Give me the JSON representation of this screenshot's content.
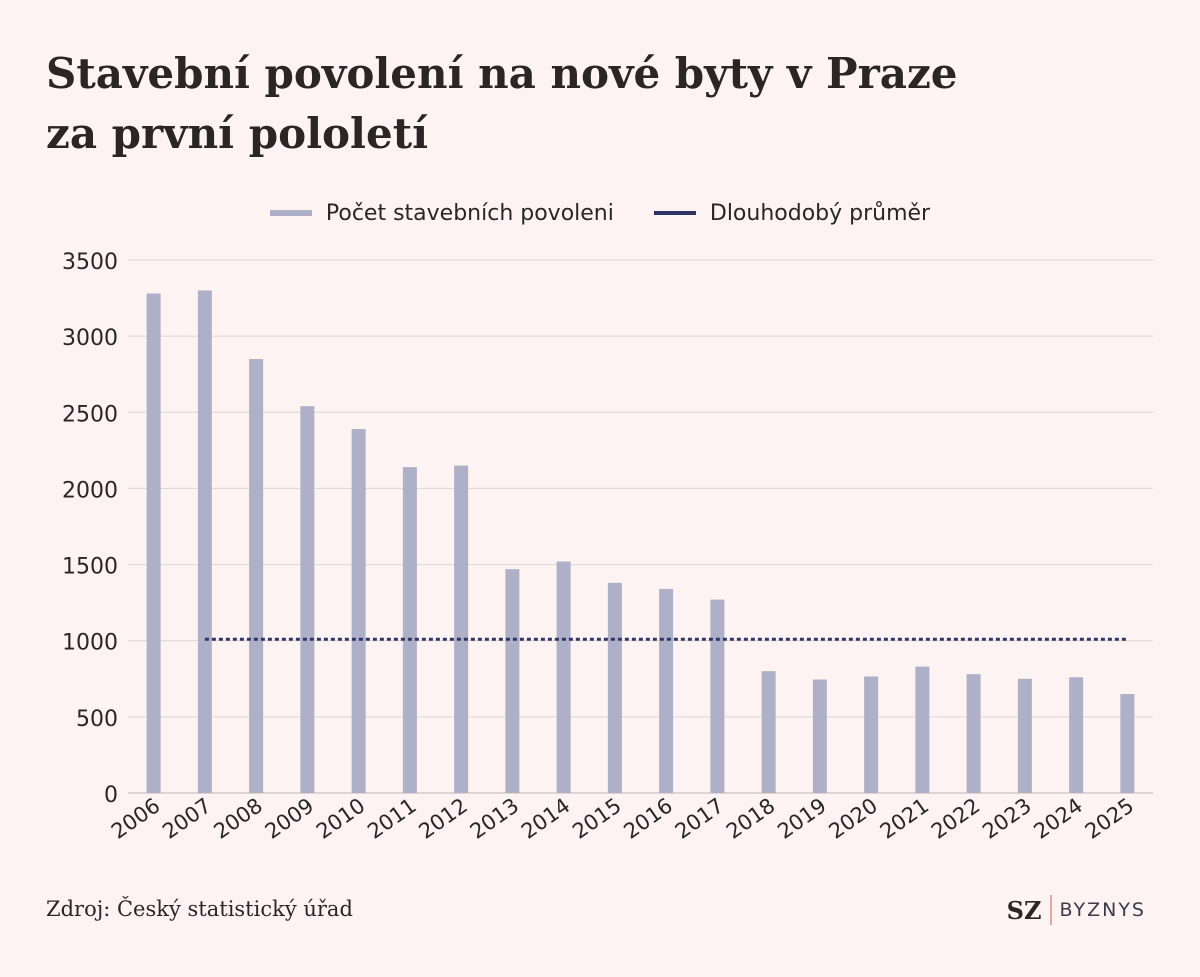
{
  "title_lines": [
    "Stavební povolení na nové byty v Praze",
    "za první pololetí"
  ],
  "legend": {
    "bars_label": "Počet stavebních povoleni",
    "line_label": "Dlouhodobý průměr"
  },
  "source": "Zdroj: Český statistický úřad",
  "brand": {
    "sz": "SZ",
    "byznys": "BYZNYS"
  },
  "colors": {
    "bar": "#adb0c7",
    "average_line": "#2f3566",
    "background": "#fdf3f2",
    "grid": "#dcd6d6"
  },
  "chart_data": {
    "type": "bar",
    "title": "Stavební povolení na nové byty v Praze za první pololetí",
    "categories": [
      "2006",
      "2007",
      "2008",
      "2009",
      "2010",
      "2011",
      "2012",
      "2013",
      "2014",
      "2015",
      "2016",
      "2017",
      "2018",
      "2019",
      "2020",
      "2021",
      "2022",
      "2023",
      "2024",
      "2025"
    ],
    "series": [
      {
        "name": "Počet stavebních povoleni",
        "values": [
          3280,
          3300,
          2850,
          2540,
          2390,
          2140,
          2150,
          1470,
          1520,
          1380,
          1340,
          1270,
          800,
          745,
          765,
          830,
          780,
          750,
          760,
          650
        ]
      }
    ],
    "average": {
      "name": "Dlouhodobý průměr",
      "value": 1010,
      "from": "2007",
      "to": "2025"
    },
    "ylim": [
      0,
      3500
    ],
    "yticks": [
      0,
      500,
      1000,
      1500,
      2000,
      2500,
      3000,
      3500
    ],
    "grid": true,
    "legend_position": "top-center"
  }
}
